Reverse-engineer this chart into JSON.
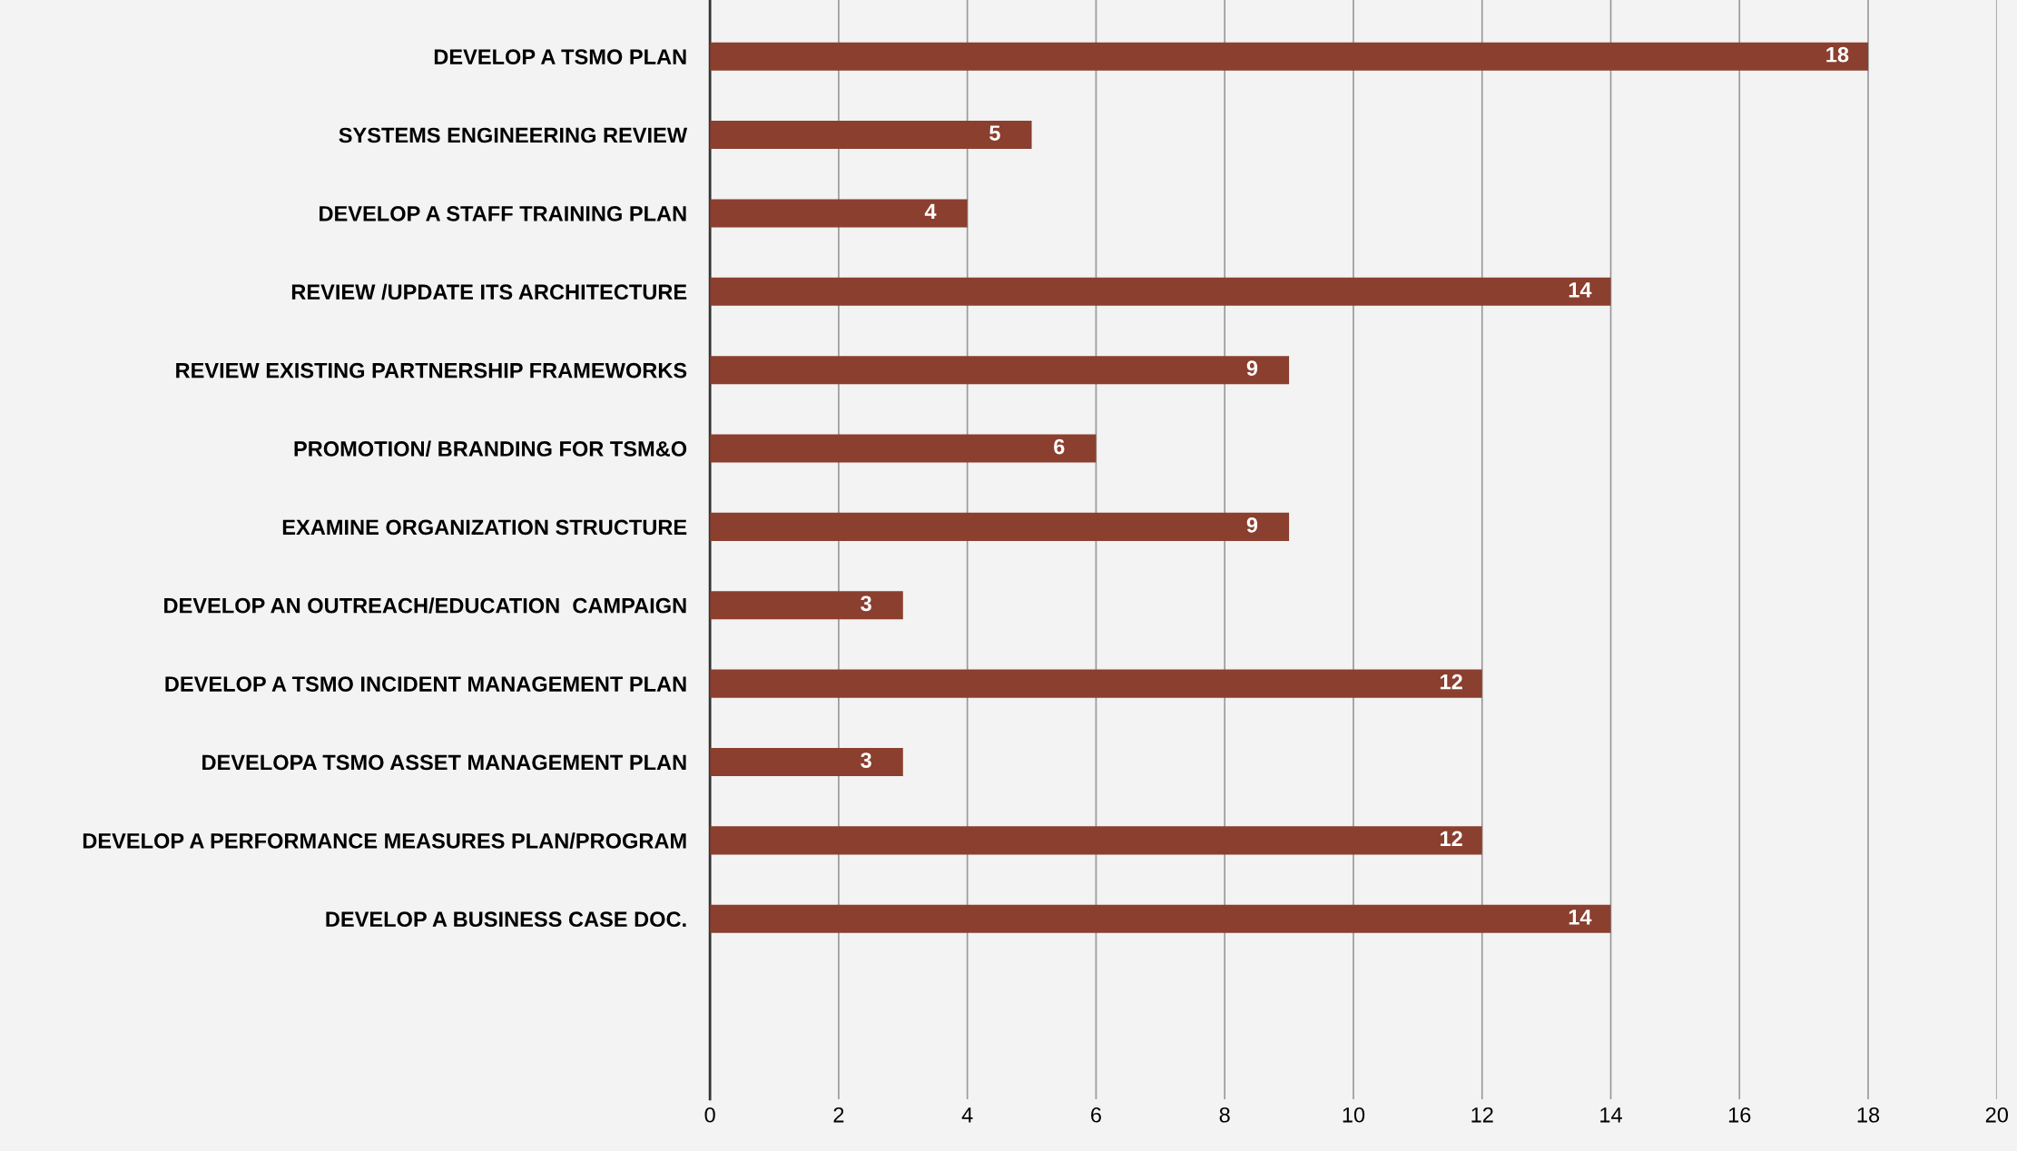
{
  "chart_data": {
    "type": "bar",
    "orientation": "horizontal",
    "categories": [
      "DEVELOP A TSMO PLAN",
      "SYSTEMS ENGINEERING REVIEW",
      "DEVELOP A STAFF TRAINING PLAN",
      "REVIEW /UPDATE ITS ARCHITECTURE",
      "REVIEW EXISTING PARTNERSHIP FRAMEWORKS",
      "PROMOTION/ BRANDING FOR TSM&O",
      "EXAMINE ORGANIZATION STRUCTURE",
      "DEVELOP AN OUTREACH/EDUCATION  CAMPAIGN",
      "DEVELOP A TSMO INCIDENT MANAGEMENT PLAN",
      "DEVELOPA TSMO ASSET MANAGEMENT PLAN",
      "DEVELOP A PERFORMANCE MEASURES PLAN/PROGRAM",
      "DEVELOP A BUSINESS CASE DOC."
    ],
    "values": [
      18,
      5,
      4,
      14,
      9,
      6,
      9,
      3,
      12,
      3,
      12,
      14
    ],
    "color": "#8b3f2f",
    "xlim": [
      0,
      20
    ],
    "xticks": [
      0,
      2,
      4,
      6,
      8,
      10,
      12,
      14,
      16,
      18,
      20
    ],
    "grid": "x",
    "data_labels": true
  }
}
